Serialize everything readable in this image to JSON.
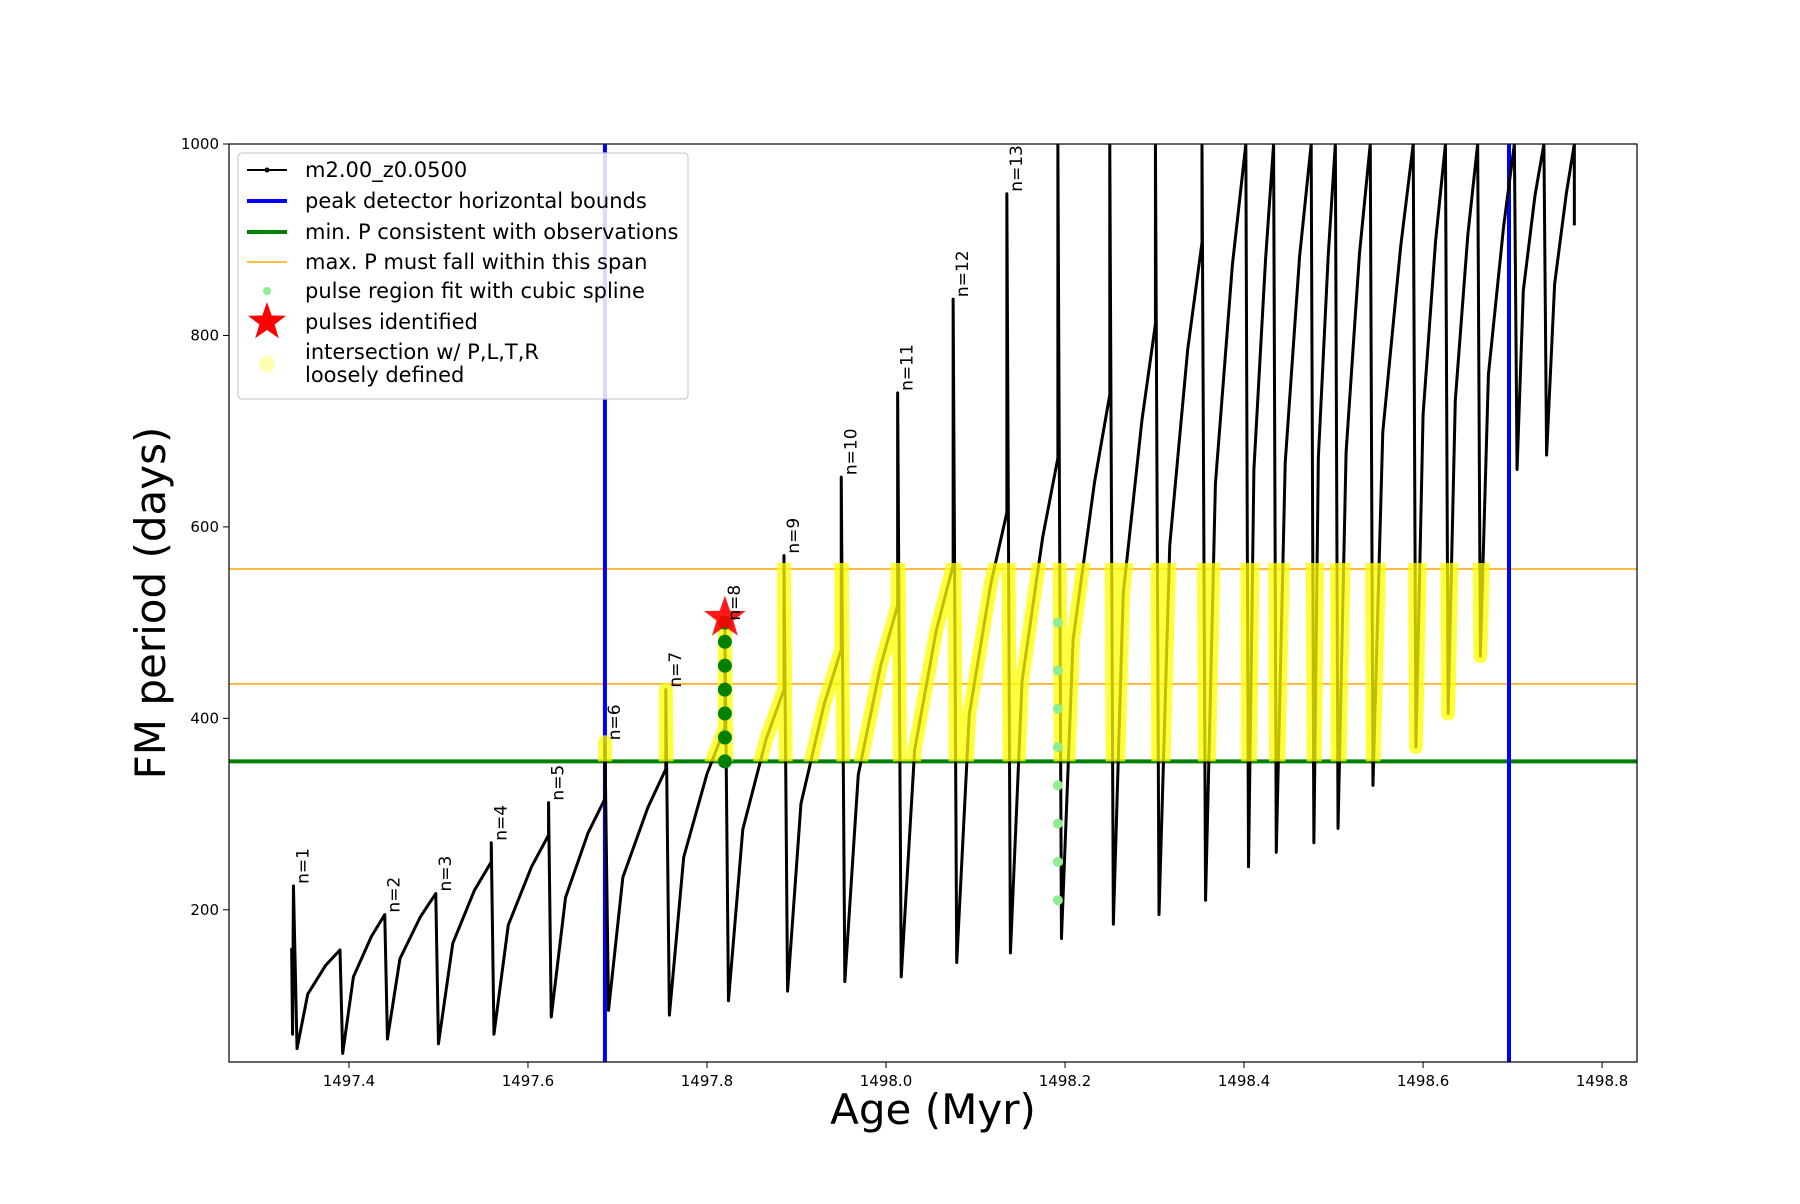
{
  "chart_data": {
    "type": "line",
    "xlabel": "Age (Myr)",
    "ylabel": "FM period (days)",
    "xlim": [
      1497.266,
      1498.839
    ],
    "ylim": [
      41,
      1000
    ],
    "xticks": [
      1497.4,
      1497.6,
      1497.8,
      {
        "value": 1498,
        "label": "1498.0"
      },
      1498.2,
      1498.4,
      1498.6,
      1498.8
    ],
    "yticks": [
      200,
      400,
      600,
      800,
      1000
    ],
    "legend": "upper left",
    "series": [
      {
        "name": "m2.00_z0.0500",
        "color": "black",
        "x": [
          1497.336,
          1497.337,
          1497.338,
          1497.342,
          1497.354,
          1497.374,
          1497.39,
          1497.393,
          1497.405,
          1497.425,
          1497.44,
          1497.443,
          1497.457,
          1497.48,
          1497.497,
          1497.5,
          1497.516,
          1497.54,
          1497.559,
          1497.559,
          1497.562,
          1497.578,
          1497.604,
          1497.623,
          1497.623,
          1497.626,
          1497.642,
          1497.667,
          1497.686,
          1497.686,
          1497.69,
          1497.706,
          1497.734,
          1497.754,
          1497.754,
          1497.758,
          1497.774,
          1497.8,
          1497.82,
          1497.82,
          1497.824,
          1497.84,
          1497.866,
          1497.886,
          1497.886,
          1497.89,
          1497.905,
          1497.931,
          1497.95,
          1497.95,
          1497.954,
          1497.969,
          1497.994,
          1498.013,
          1498.013,
          1498.017,
          1498.032,
          1498.056,
          1498.075,
          1498.075,
          1498.079,
          1498.093,
          1498.117,
          1498.135,
          1498.135,
          1498.139,
          1498.152,
          1498.175,
          1498.192,
          1498.192,
          1498.196,
          1498.209,
          1498.233,
          1498.25,
          1498.25,
          1498.254,
          1498.265,
          1498.286,
          1498.301,
          1498.301,
          1498.305,
          1498.317,
          1498.337,
          1498.353,
          1498.353,
          1498.357,
          1498.368,
          1498.387,
          1498.402,
          1498.405,
          1498.411,
          1498.424,
          1498.433,
          1498.436,
          1498.446,
          1498.462,
          1498.475,
          1498.478,
          1498.483,
          1498.494,
          1498.502,
          1498.505,
          1498.514,
          1498.529,
          1498.541,
          1498.544,
          1498.555,
          1498.575,
          1498.589,
          1498.592,
          1498.6,
          1498.614,
          1498.625,
          1498.628,
          1498.636,
          1498.65,
          1498.661,
          1498.664,
          1498.673,
          1498.69,
          1498.702,
          1498.705,
          1498.712,
          1498.725,
          1498.735,
          1498.738,
          1498.747,
          1498.76,
          1498.769,
          1498.769
        ],
        "values": [
          160,
          70,
          225,
          55,
          112,
          142,
          158,
          50,
          130,
          172,
          195,
          65,
          149,
          193,
          217,
          60,
          165,
          220,
          250,
          270,
          70,
          184,
          245,
          278,
          312,
          88,
          213,
          280,
          316,
          375,
          95,
          234,
          307,
          347,
          430,
          90,
          255,
          342,
          390,
          500,
          105,
          284,
          378,
          430,
          570,
          115,
          311,
          415,
          472,
          652,
          125,
          341,
          455,
          518,
          740,
          130,
          367,
          491,
          560,
          838,
          145,
          404,
          540,
          615,
          948,
          155,
          439,
          589,
          672,
          1000,
          170,
          482,
          647,
          738,
          1000,
          185,
          530,
          712,
          812,
          1000,
          195,
          581,
          785,
          897,
          1000,
          210,
          645,
          874,
          1000,
          245,
          660,
          879,
          1000,
          260,
          667,
          882,
          1000,
          270,
          672,
          883,
          1000,
          285,
          678,
          886,
          1000,
          330,
          699,
          893,
          1000,
          370,
          717,
          899,
          1000,
          405,
          732,
          905,
          1000,
          465,
          759,
          914,
          1000,
          660,
          847,
          946,
          1000,
          675,
          854,
          948,
          1000,
          915
        ]
      }
    ],
    "vlines": {
      "name": "peak detector horizontal bounds",
      "color": "blue",
      "values": [
        1497.686,
        1498.696
      ]
    },
    "min_line": {
      "name": "min. P consistent with observations",
      "color": "green",
      "value": 355
    },
    "max_lines": {
      "name": "max. P must fall within this span",
      "color": "orange",
      "values": [
        436,
        556
      ]
    },
    "spline": {
      "name": "pulse region fit with cubic spline",
      "color": "lightgreen",
      "x": [
        1498.192,
        1498.192,
        1498.192,
        1498.192,
        1498.192,
        1498.192,
        1498.192,
        1498.192
      ],
      "values": [
        210,
        250,
        290,
        330,
        370,
        410,
        450,
        500
      ]
    },
    "pulses": {
      "name": "pulses identified",
      "color": "red",
      "x": [
        1497.82
      ],
      "values": [
        505
      ]
    },
    "intersection": {
      "name": [
        "intersection w/ P,L,T,R",
        "loosely defined"
      ],
      "color": "yellow"
    },
    "pulse_region": {
      "color": "green",
      "x": [
        1497.82,
        1497.82,
        1497.82,
        1497.82,
        1497.82,
        1497.82,
        1497.82
      ],
      "values": [
        355,
        380,
        405,
        430,
        455,
        480,
        500
      ]
    },
    "annotations": [
      {
        "text": "n=1",
        "x": 1497.338,
        "y": 225
      },
      {
        "text": "n=2",
        "x": 1497.44,
        "y": 195
      },
      {
        "text": "n=3",
        "x": 1497.497,
        "y": 217
      },
      {
        "text": "n=4",
        "x": 1497.559,
        "y": 270
      },
      {
        "text": "n=5",
        "x": 1497.623,
        "y": 312
      },
      {
        "text": "n=6",
        "x": 1497.686,
        "y": 375
      },
      {
        "text": "n=7",
        "x": 1497.754,
        "y": 430
      },
      {
        "text": "n=8",
        "x": 1497.82,
        "y": 500
      },
      {
        "text": "n=9",
        "x": 1497.886,
        "y": 570
      },
      {
        "text": "n=10",
        "x": 1497.95,
        "y": 652
      },
      {
        "text": "n=11",
        "x": 1498.013,
        "y": 740
      },
      {
        "text": "n=12",
        "x": 1498.075,
        "y": 838
      },
      {
        "text": "n=13",
        "x": 1498.135,
        "y": 948
      }
    ]
  }
}
